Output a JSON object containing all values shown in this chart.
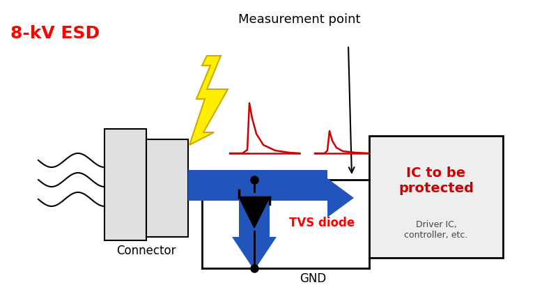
{
  "background_color": "#ffffff",
  "esd_label": "8-kV ESD",
  "esd_color": "#ff0000",
  "measurement_label": "Measurement point",
  "measurement_color": "#000000",
  "connector_label": "Connector",
  "connector_color": "#000000",
  "ic_label": "IC to be\nprotected",
  "ic_color": "#cc0000",
  "ic_sublabel": "Driver IC,\ncontroller, etc.",
  "ic_sublabel_color": "#444444",
  "tvs_label": "TVS diode",
  "tvs_color": "#ff0000",
  "gnd_label": "GND",
  "gnd_color": "#000000",
  "arrow_color": "#2255bb",
  "line_color": "#000000",
  "box_fill": "#e0e0e0",
  "ic_box_fill": "#eeeeee",
  "lightning_fill": "#ffee00",
  "lightning_edge": "#ccaa00",
  "signal_color": "#cc0000",
  "figsize": [
    7.68,
    4.32
  ],
  "dpi": 100
}
